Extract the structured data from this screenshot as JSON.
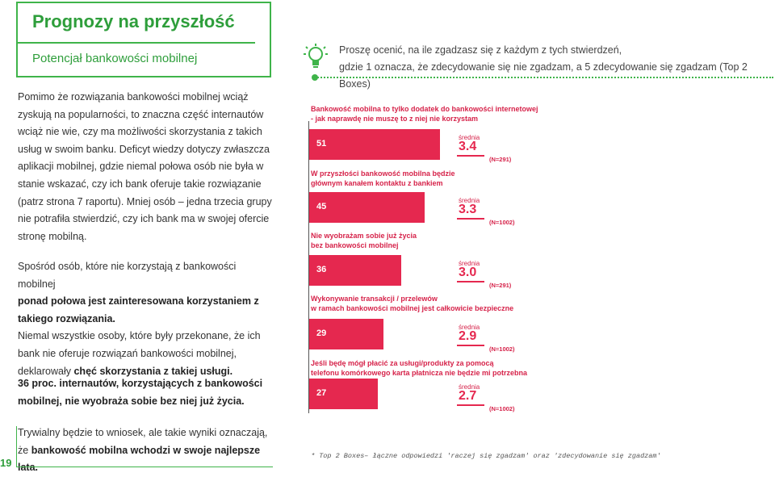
{
  "header": {
    "title": "Prognozy na przyszłość",
    "subtitle": "Potencjał bankowości mobilnej"
  },
  "question": {
    "line1": "Proszę ocenić, na ile zgadzasz się z każdym z tych stwierdzeń,",
    "line2": "gdzie 1 oznacza, że zdecydowanie się nie zgadzam, a 5 zdecydowanie się zgadzam (Top 2 Boxes)"
  },
  "left": {
    "p1": [
      "Pomimo że rozwiązania bankowości mobilnej wciąż",
      "zyskują na popularności, to znaczna część internautów",
      "wciąż nie wie, czy ma możliwości skorzystania z takich",
      "usług w swoim banku. Deficyt wiedzy dotyczy zwłaszcza",
      "aplikacji mobilnej, gdzie niemal połowa osób nie była w",
      "stanie wskazać, czy ich bank oferuje takie rozwiązanie",
      "(patrz strona 7 raportu). Mniej osób – jedna trzecia grupy",
      "nie potrafiła stwierdzić, czy ich bank ma w swojej ofercie",
      "stronę mobilną."
    ],
    "p2": {
      "l1": "Spośród osób, które nie korzystają z bankowości mobilnej",
      "l2": "ponad połowa jest zainteresowana korzystaniem z",
      "l3": "takiego rozwiązania.",
      "l4": "Niemal wszystkie osoby, które były przekonane, że ich",
      "l5": "bank nie oferuje rozwiązań bankowości mobilnej,",
      "l6a": "deklarowały ",
      "l6b": "chęć skorzystania z takiej usługi."
    },
    "p3": {
      "l1": "36 proc. internautów, korzystających z bankowości",
      "l2": "mobilnej, nie wyobraża sobie bez niej już życia."
    },
    "p4": {
      "l1": "Trywialny będzie to wniosek, ale takie wyniki oznaczają,",
      "l2a": "że ",
      "l2b": "bankowość mobilna wchodzi w swoje najlepsze lata."
    }
  },
  "chart_data": {
    "type": "bar",
    "categories": [
      "Bankowość mobilna to tylko dodatek do bankowości internetowej - jak naprawdę nie muszę to z niej nie korzystam",
      "W przyszłości bankowość mobilna będzie głównym kanałem kontaktu z bankiem",
      "Nie wyobrażam sobie już życia bez bankowości mobilnej",
      "Wykonywanie transakcji / przelewów w ramach bankowości mobilnej jest całkowicie bezpieczne",
      "Jeśli będę mógł płacić za usługi/produkty za pomocą telefonu komórkowego karta płatnicza nie będzie mi potrzebna"
    ],
    "label_lines": [
      [
        "Bankowość mobilna to tylko dodatek do bankowości internetowej",
        "- jak naprawdę nie muszę to z niej nie korzystam"
      ],
      [
        "W przyszłości bankowość mobilna będzie",
        "głównym kanałem kontaktu z bankiem"
      ],
      [
        "Nie wyobrażam sobie już życia",
        "bez bankowości mobilnej"
      ],
      [
        "Wykonywanie transakcji / przelewów",
        "w ramach bankowości mobilnej jest całkowicie bezpieczne"
      ],
      [
        "Jeśli będę mógł płacić za usługi/produkty za pomocą",
        "telefonu komórkowego karta płatnicza nie będzie mi potrzebna"
      ]
    ],
    "values": [
      51,
      45,
      36,
      29,
      27
    ],
    "averages": [
      "3.4",
      "3.3",
      "3.0",
      "2.9",
      "2.7"
    ],
    "avg_label": "średnia",
    "n": [
      "(N=291)",
      "(N=1002)",
      "(N=291)",
      "(N=1002)",
      "(N=1002)"
    ],
    "xlim": [
      0,
      100
    ],
    "colors": {
      "bar": "#e5284f",
      "label": "#d6234a"
    }
  },
  "footnote": "* Top 2 Boxes– łączne odpowiedzi 'raczej się zgadzam' oraz 'zdecydowanie się zgadzam'",
  "page_number": "19"
}
